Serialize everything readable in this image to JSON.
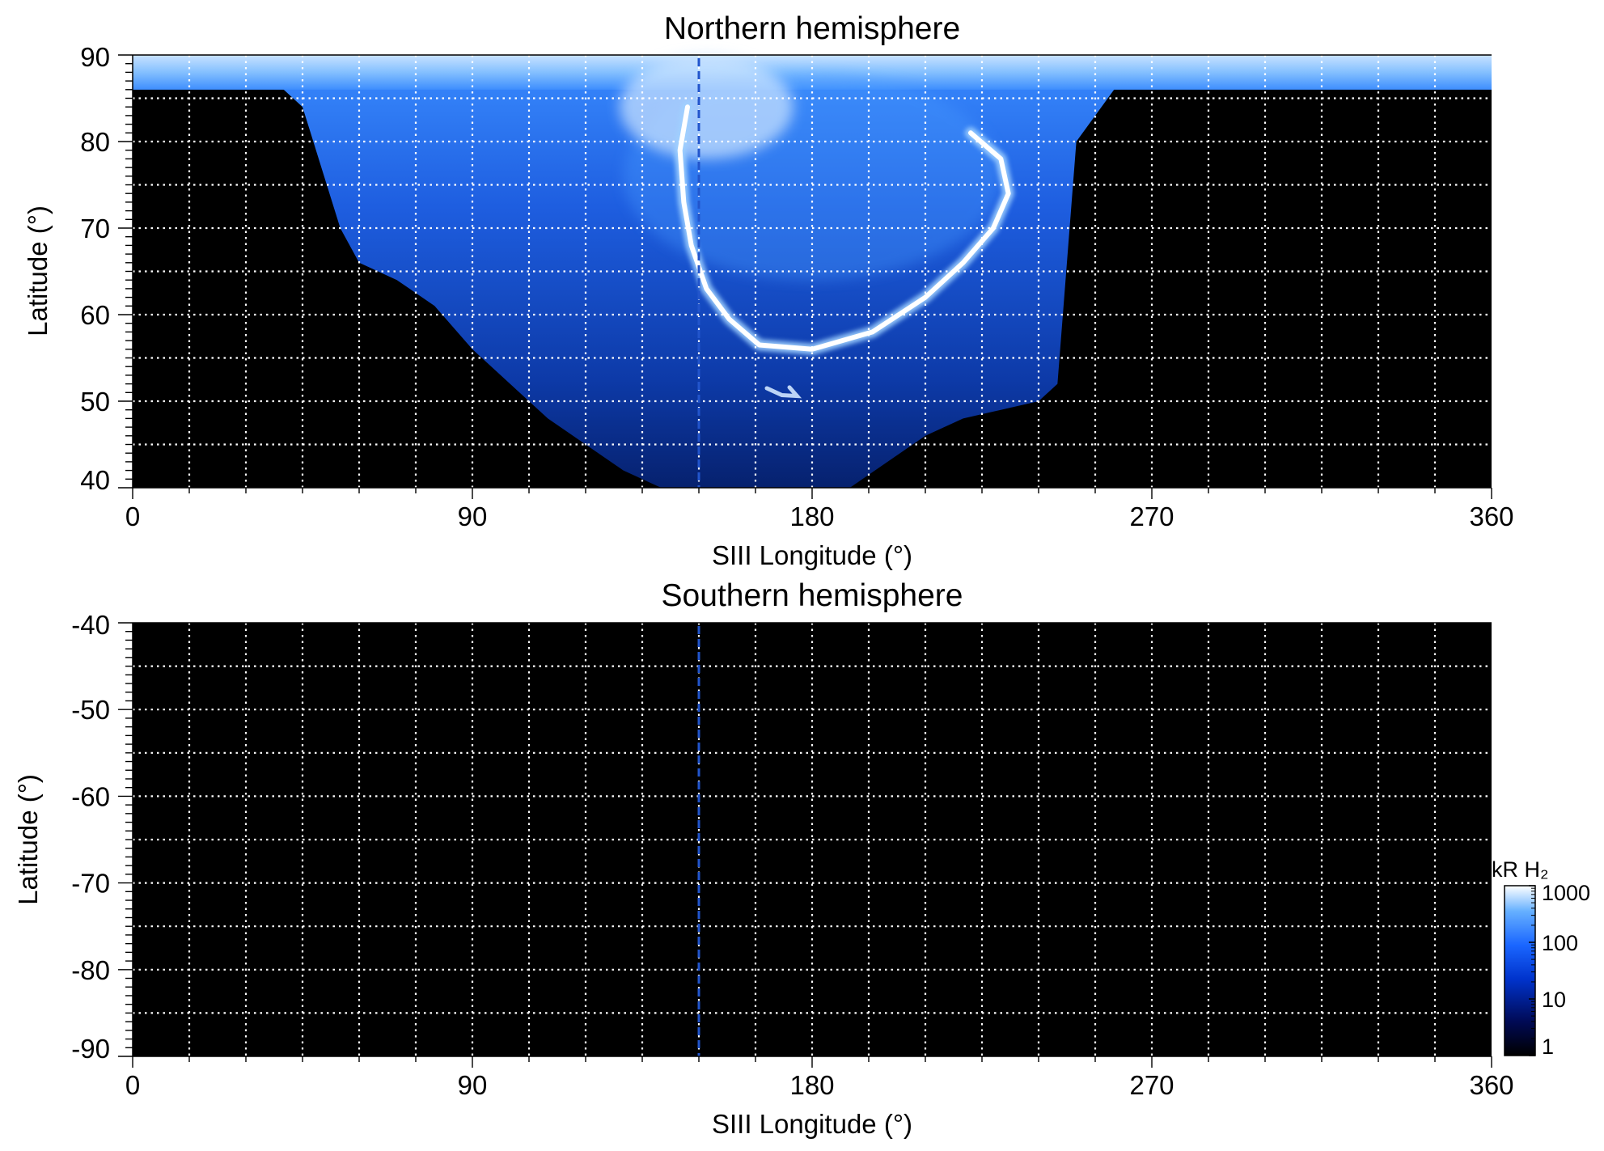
{
  "chart_data": [
    {
      "type": "heatmap",
      "title": "Northern hemisphere",
      "xlabel": "SIII Longitude (°)",
      "ylabel": "Latitude (°)",
      "xlim": [
        0,
        360
      ],
      "ylim": [
        40,
        90
      ],
      "x_ticks": [
        0,
        90,
        180,
        270,
        360
      ],
      "y_ticks": [
        40,
        50,
        60,
        70,
        80,
        90
      ],
      "x_tick_labels": [
        "0",
        "90",
        "180",
        "270",
        "360"
      ],
      "y_tick_labels": [
        "40",
        "50",
        "60",
        "70",
        "80",
        "90"
      ],
      "grid_x_step": 15,
      "grid_y_step": 5,
      "grid": true,
      "marker_longitude": 150,
      "marker_style": "dashed",
      "marker_color": "#2255cc",
      "coverage_edge_longitudes": [
        0,
        10,
        20,
        30,
        40,
        45,
        50,
        55,
        60,
        70,
        80,
        90,
        100,
        110,
        120,
        130,
        140,
        150,
        160,
        170,
        180,
        190,
        200,
        210,
        220,
        230,
        240,
        245,
        250,
        260,
        270,
        280,
        290,
        300,
        310,
        320,
        330,
        340,
        350,
        360
      ],
      "coverage_lower_latitude": [
        86,
        86,
        86,
        86,
        86,
        84,
        77,
        70,
        66,
        64,
        61,
        56,
        52,
        48,
        45,
        42,
        40,
        40,
        40,
        40,
        40,
        40,
        43,
        46,
        48,
        49,
        50,
        52,
        80,
        86,
        86,
        86,
        86,
        86,
        86,
        86,
        86,
        86,
        86,
        86
      ],
      "main_oval": [
        {
          "lon": 147,
          "lat": 84
        },
        {
          "lon": 145,
          "lat": 79
        },
        {
          "lon": 146,
          "lat": 73
        },
        {
          "lon": 148,
          "lat": 68
        },
        {
          "lon": 152,
          "lat": 63
        },
        {
          "lon": 158,
          "lat": 59.5
        },
        {
          "lon": 166,
          "lat": 56.5
        },
        {
          "lon": 180,
          "lat": 56
        },
        {
          "lon": 196,
          "lat": 58
        },
        {
          "lon": 210,
          "lat": 62
        },
        {
          "lon": 220,
          "lat": 66
        },
        {
          "lon": 228,
          "lat": 70
        },
        {
          "lon": 232,
          "lat": 74
        },
        {
          "lon": 230,
          "lat": 78
        },
        {
          "lon": 222,
          "lat": 81
        }
      ],
      "inner_arc": [
        {
          "lon": 168,
          "lat": 51.5
        },
        {
          "lon": 172,
          "lat": 50.7
        },
        {
          "lon": 176,
          "lat": 50.6
        },
        {
          "lon": 174,
          "lat": 51.6
        }
      ]
    },
    {
      "type": "heatmap",
      "title": "Southern hemisphere",
      "xlabel": "SIII Longitude (°)",
      "ylabel": "Latitude (°)",
      "xlim": [
        0,
        360
      ],
      "ylim": [
        -90,
        -40
      ],
      "x_ticks": [
        0,
        90,
        180,
        270,
        360
      ],
      "y_ticks": [
        -40,
        -50,
        -60,
        -70,
        -80,
        -90
      ],
      "x_tick_labels": [
        "0",
        "90",
        "180",
        "270",
        "360"
      ],
      "y_tick_labels": [
        "-40",
        "-50",
        "-60",
        "-70",
        "-80",
        "-90"
      ],
      "grid_x_step": 15,
      "grid_y_step": 5,
      "grid": true,
      "marker_longitude": 150,
      "marker_style": "dashed",
      "marker_color": "#2255cc"
    }
  ],
  "colorbar": {
    "title": "kR H₂",
    "scale": "log",
    "range": [
      1,
      1000
    ],
    "tick_values": [
      1,
      10,
      100,
      1000
    ],
    "tick_labels": [
      "1",
      "10",
      "100",
      "1000"
    ],
    "stops": [
      "#000000",
      "#000a55",
      "#0033cc",
      "#1a66ff",
      "#66b0ff",
      "#ffffff"
    ]
  },
  "colors": {
    "background": "#000000",
    "grid": "#ffffff",
    "emission_low": "#0a2f9a",
    "emission_mid": "#2a7cff",
    "emission_high": "#ffffff"
  }
}
